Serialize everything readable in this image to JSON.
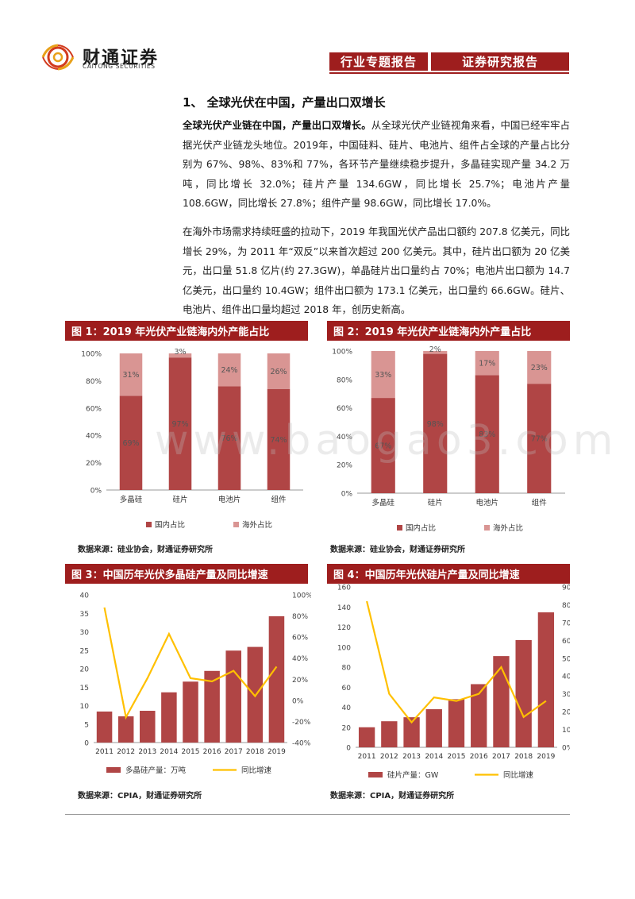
{
  "header": {
    "brand_cn": "财通证券",
    "brand_en": "CAITONG SECURITIES",
    "tag1": "行业专题报告",
    "tag2": "证券研究报告"
  },
  "section_title": "1、 全球光伏在中国，产量出口双增长",
  "para1_lead": "全球光伏产业链在中国，产量出口双增长。",
  "para1_text": "从全球光伏产业链视角来看，中国已经牢牢占据光伏产业链龙头地位。2019年，中国硅料、硅片、电池片、组件占全球的产量占比分别为 67%、98%、83%和 77%，各环节产量继续稳步提升，多晶硅实现产量 34.2 万吨，同比增长 32.0%；硅片产量 134.6GW，同比增长 25.7%；电池片产量 108.6GW，同比增长 27.8%；组件产量 98.6GW，同比增长 17.0%。",
  "para2_text": "在海外市场需求持续旺盛的拉动下，2019 年我国光伏产品出口额约 207.8 亿美元，同比增长 29%，为 2011 年“双反”以来首次超过 200 亿美元。其中，硅片出口额为 20 亿美元，出口量 51.8 亿片(约 27.3GW)，单晶硅片出口量约占 70%；电池片出口额为 14.7 亿美元，出口量约 10.4GW；组件出口额为 173.1 亿美元，出口量约 66.6GW。硅片、电池片、组件出口量均超过 2018 年，创历史新高。",
  "watermark": "www.baogao3.com",
  "colors": {
    "dark_red": "#b04545",
    "light_pink": "#d99593",
    "header_red": "#9e1e1e",
    "yellow": "#ffc000"
  },
  "figures": [
    {
      "title": "图 1：2019 年光伏产业链海内外产能占比",
      "source": "数据来源：硅业协会，财通证券研究所"
    },
    {
      "title": "图 2：2019 年光伏产业链海内外产量占比",
      "source": "数据来源：硅业协会，财通证券研究所"
    },
    {
      "title": "图 3：中国历年光伏多晶硅产量及同比增速",
      "source": "数据来源：CPIA，财通证券研究所"
    },
    {
      "title": "图 4：中国历年光伏硅片产量及同比增速",
      "source": "数据来源：CPIA，财通证券研究所"
    }
  ],
  "chart_data": [
    {
      "type": "bar",
      "stacked": true,
      "title": "图 1：2019 年光伏产业链海内外产能占比",
      "categories": [
        "多晶硅",
        "硅片",
        "电池片",
        "组件"
      ],
      "series": [
        {
          "name": "国内占比",
          "values": [
            69,
            97,
            76,
            74
          ],
          "labels": [
            "69%",
            "97%",
            "76%",
            "74%"
          ]
        },
        {
          "name": "海外占比",
          "values": [
            31,
            3,
            24,
            26
          ],
          "labels": [
            "31%",
            "3%",
            "24%",
            "26%"
          ]
        }
      ],
      "y_ticks": [
        "0%",
        "20%",
        "40%",
        "60%",
        "80%",
        "100%"
      ],
      "ylim": [
        0,
        100
      ],
      "legend": "bottom"
    },
    {
      "type": "bar",
      "stacked": true,
      "title": "图 2：2019 年光伏产业链海内外产量占比",
      "categories": [
        "多晶硅",
        "硅片",
        "电池片",
        "组件"
      ],
      "series": [
        {
          "name": "国内占比",
          "values": [
            67,
            98,
            83,
            77
          ],
          "labels": [
            "67%",
            "98%",
            "83%",
            "77%"
          ]
        },
        {
          "name": "海外占比",
          "values": [
            33,
            2,
            17,
            23
          ],
          "labels": [
            "33%",
            "2%",
            "17%",
            "23%"
          ]
        }
      ],
      "y_ticks": [
        "0%",
        "20%",
        "40%",
        "60%",
        "80%",
        "100%"
      ],
      "ylim": [
        0,
        100
      ],
      "legend": "bottom"
    },
    {
      "type": "bar+line",
      "title": "图 3：中国历年光伏多晶硅产量及同比增速",
      "categories": [
        "2011",
        "2012",
        "2013",
        "2014",
        "2015",
        "2016",
        "2017",
        "2018",
        "2019"
      ],
      "bar_series": {
        "name": "多晶硅产量：万吨",
        "values": [
          8.4,
          7.1,
          8.6,
          13.6,
          16.5,
          19.4,
          24.9,
          25.9,
          34.2
        ]
      },
      "line_series": {
        "name": "同比增速",
        "values": [
          88,
          -16,
          21,
          63,
          21,
          18,
          28,
          4,
          32
        ]
      },
      "y_ticks": [
        "0",
        "5",
        "10",
        "15",
        "20",
        "25",
        "30",
        "35",
        "40"
      ],
      "ylim": [
        0,
        40
      ],
      "y2_ticks": [
        "-40%",
        "-20%",
        "0%",
        "20%",
        "40%",
        "60%",
        "80%",
        "100%"
      ],
      "y2lim": [
        -40,
        100
      ],
      "legend": "bottom"
    },
    {
      "type": "bar+line",
      "title": "图 4：中国历年光伏硅片产量及同比增速",
      "categories": [
        "2011",
        "2012",
        "2013",
        "2014",
        "2015",
        "2016",
        "2017",
        "2018",
        "2019"
      ],
      "bar_series": {
        "name": "硅片产量：GW",
        "values": [
          20,
          26,
          30,
          38,
          48,
          63,
          91,
          107,
          134.6
        ]
      },
      "line_series": {
        "name": "同比增速",
        "values": [
          82,
          30,
          14,
          28,
          26,
          30,
          45,
          17,
          26
        ]
      },
      "y_ticks": [
        "0",
        "20",
        "40",
        "60",
        "80",
        "100",
        "120",
        "140",
        "160"
      ],
      "ylim": [
        0,
        160
      ],
      "y2_ticks": [
        "0%",
        "10%",
        "20%",
        "30%",
        "40%",
        "50%",
        "60%",
        "70%",
        "80%",
        "90%"
      ],
      "y2lim": [
        0,
        90
      ],
      "legend": "bottom"
    }
  ]
}
